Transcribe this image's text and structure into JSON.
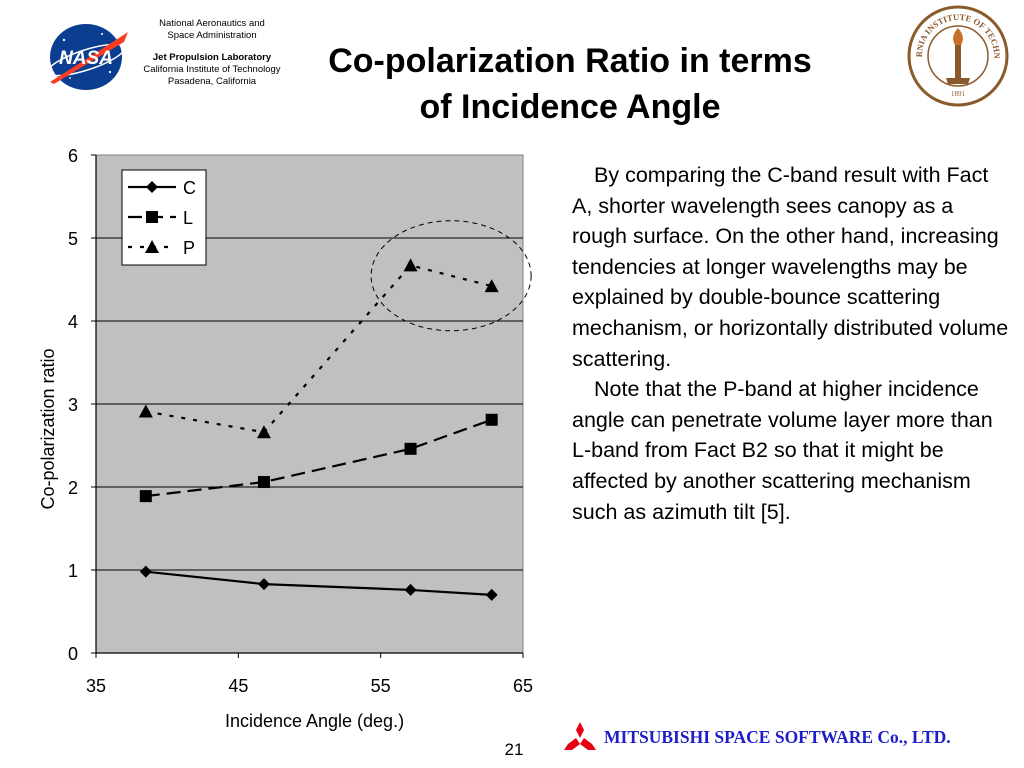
{
  "header": {
    "org_line1": "National Aeronautics and",
    "org_line2": "Space Administration",
    "lab_name": "Jet Propulsion Laboratory",
    "institute": "California Institute of Technology",
    "location": "Pasadena, California",
    "nasa_logo_text": "NASA",
    "seal_text": "CALIFORNIA INSTITUTE OF TECHNOLOGY",
    "seal_year": "1891"
  },
  "title": {
    "line1": "Co-polarization Ratio in terms",
    "line2": "of Incidence Angle"
  },
  "chart_data": {
    "type": "line",
    "title": "",
    "xlabel": "Incidence Angle (deg.)",
    "ylabel": "Co-polarization ratio",
    "xlim": [
      35,
      65
    ],
    "ylim": [
      0,
      6
    ],
    "xticks": [
      35,
      45,
      55,
      65
    ],
    "yticks": [
      0,
      1,
      2,
      3,
      4,
      5,
      6
    ],
    "grid": "horizontal",
    "plot_background": "#c0c0c0",
    "legend_position": "top-left",
    "series": [
      {
        "name": "C",
        "marker": "diamond",
        "line": "solid",
        "x": [
          38.5,
          46.8,
          57.1,
          62.8
        ],
        "y": [
          0.98,
          0.83,
          0.76,
          0.7
        ]
      },
      {
        "name": "L",
        "marker": "square",
        "line": "dashed",
        "x": [
          38.5,
          46.8,
          57.1,
          62.8
        ],
        "y": [
          1.89,
          2.06,
          2.46,
          2.81
        ]
      },
      {
        "name": "P",
        "marker": "triangle",
        "line": "dotted",
        "x": [
          38.5,
          46.8,
          57.1,
          62.8
        ],
        "y": [
          2.91,
          2.66,
          4.67,
          4.42
        ]
      }
    ],
    "annotation": "dashed ellipse around the P-band points at the two highest incidence angles"
  },
  "body": {
    "paragraph1": "By comparing the C-band result with Fact A, shorter wavelength sees canopy as a rough surface. On the other hand, increasing tendencies at longer wavelengths may be explained by double-bounce scattering mechanism, or horizontally distributed volume scattering.",
    "paragraph2": "Note that the P-band at higher incidence angle can penetrate volume layer more than L-band from Fact B2 so that it might be affected by another scattering mechanism such as azimuth tilt [5]."
  },
  "footer": {
    "page_number": "21",
    "company": "MITSUBISHI SPACE SOFTWARE Co., LTD.",
    "company_color": "#1e1ec8",
    "logo_color": "#e60012"
  },
  "colors": {
    "nasa_blue": "#0b3d91",
    "nasa_red": "#fc3d21",
    "seal_brown": "#8b5a2b"
  }
}
